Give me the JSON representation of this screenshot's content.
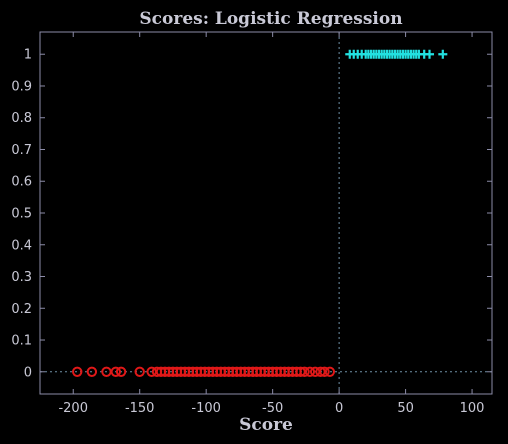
{
  "chart_data": {
    "type": "scatter",
    "title": "Scores: Logistic Regression",
    "xlabel": "Score",
    "ylabel": "",
    "xlim": [
      -225,
      115
    ],
    "ylim": [
      -0.07,
      1.07
    ],
    "x_ticks": [
      -200,
      -150,
      -100,
      -50,
      0,
      50,
      100
    ],
    "y_ticks": [
      0,
      0.1,
      0.2,
      0.3,
      0.4,
      0.5,
      0.6,
      0.7,
      0.8,
      0.9,
      1
    ],
    "grid": false,
    "reference_lines": {
      "vertical_x": 0,
      "horizontal_y": 0
    },
    "series": [
      {
        "marker": "circle",
        "color": "#e01818",
        "y": 0,
        "x": [
          -197,
          -186,
          -175,
          -168,
          -164,
          -150,
          -141,
          -137,
          -134,
          -131,
          -128,
          -125,
          -122,
          -119,
          -116,
          -113,
          -110,
          -107,
          -104,
          -101,
          -98,
          -95,
          -92,
          -89,
          -86,
          -83,
          -80,
          -77,
          -74,
          -71,
          -68,
          -65,
          -62,
          -59,
          -56,
          -53,
          -50,
          -47,
          -44,
          -41,
          -38,
          -35,
          -32,
          -29,
          -26,
          -22,
          -18,
          -14,
          -11,
          -7
        ]
      },
      {
        "marker": "plus",
        "color": "#22e0e0",
        "y": 1,
        "x": [
          8,
          11,
          14,
          17,
          20,
          22,
          24,
          26,
          28,
          30,
          32,
          34,
          36,
          38,
          40,
          42,
          44,
          46,
          48,
          50,
          52,
          54,
          56,
          58,
          60,
          64,
          68,
          78
        ]
      }
    ],
    "colors": {
      "background": "#000000",
      "axes_frame": "#8c8ca8",
      "text": "#c9c9d6",
      "reference_line": "#6f8fa6"
    }
  }
}
